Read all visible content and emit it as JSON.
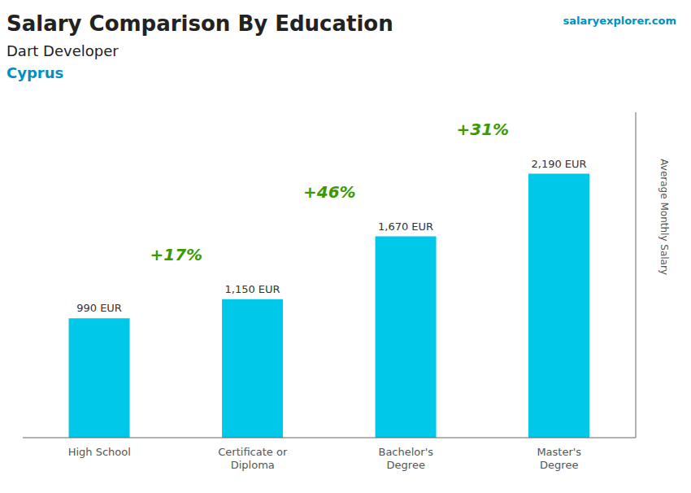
{
  "chart_data": {
    "type": "bar",
    "title": "Salary Comparison By Education",
    "subtitle": "Dart Developer",
    "annotations": {
      "country": "Cyprus",
      "website": "salaryexplorer.com",
      "changes": [
        "+17%",
        "+46%",
        "+31%"
      ]
    },
    "ylabel": "Average Monthly Salary",
    "categories": [
      "High School",
      "Certificate or\nDiploma",
      "Bachelor's\nDegree",
      "Master's\nDegree"
    ],
    "values": [
      990,
      1150,
      1670,
      2190
    ],
    "value_labels": [
      "990 EUR",
      "1,150 EUR",
      "1,670 EUR",
      "2,190 EUR"
    ],
    "data_labels": true,
    "color": "#00c8e8",
    "ylim": [
      0,
      2700
    ],
    "tick_labels": "x",
    "grid": false
  }
}
